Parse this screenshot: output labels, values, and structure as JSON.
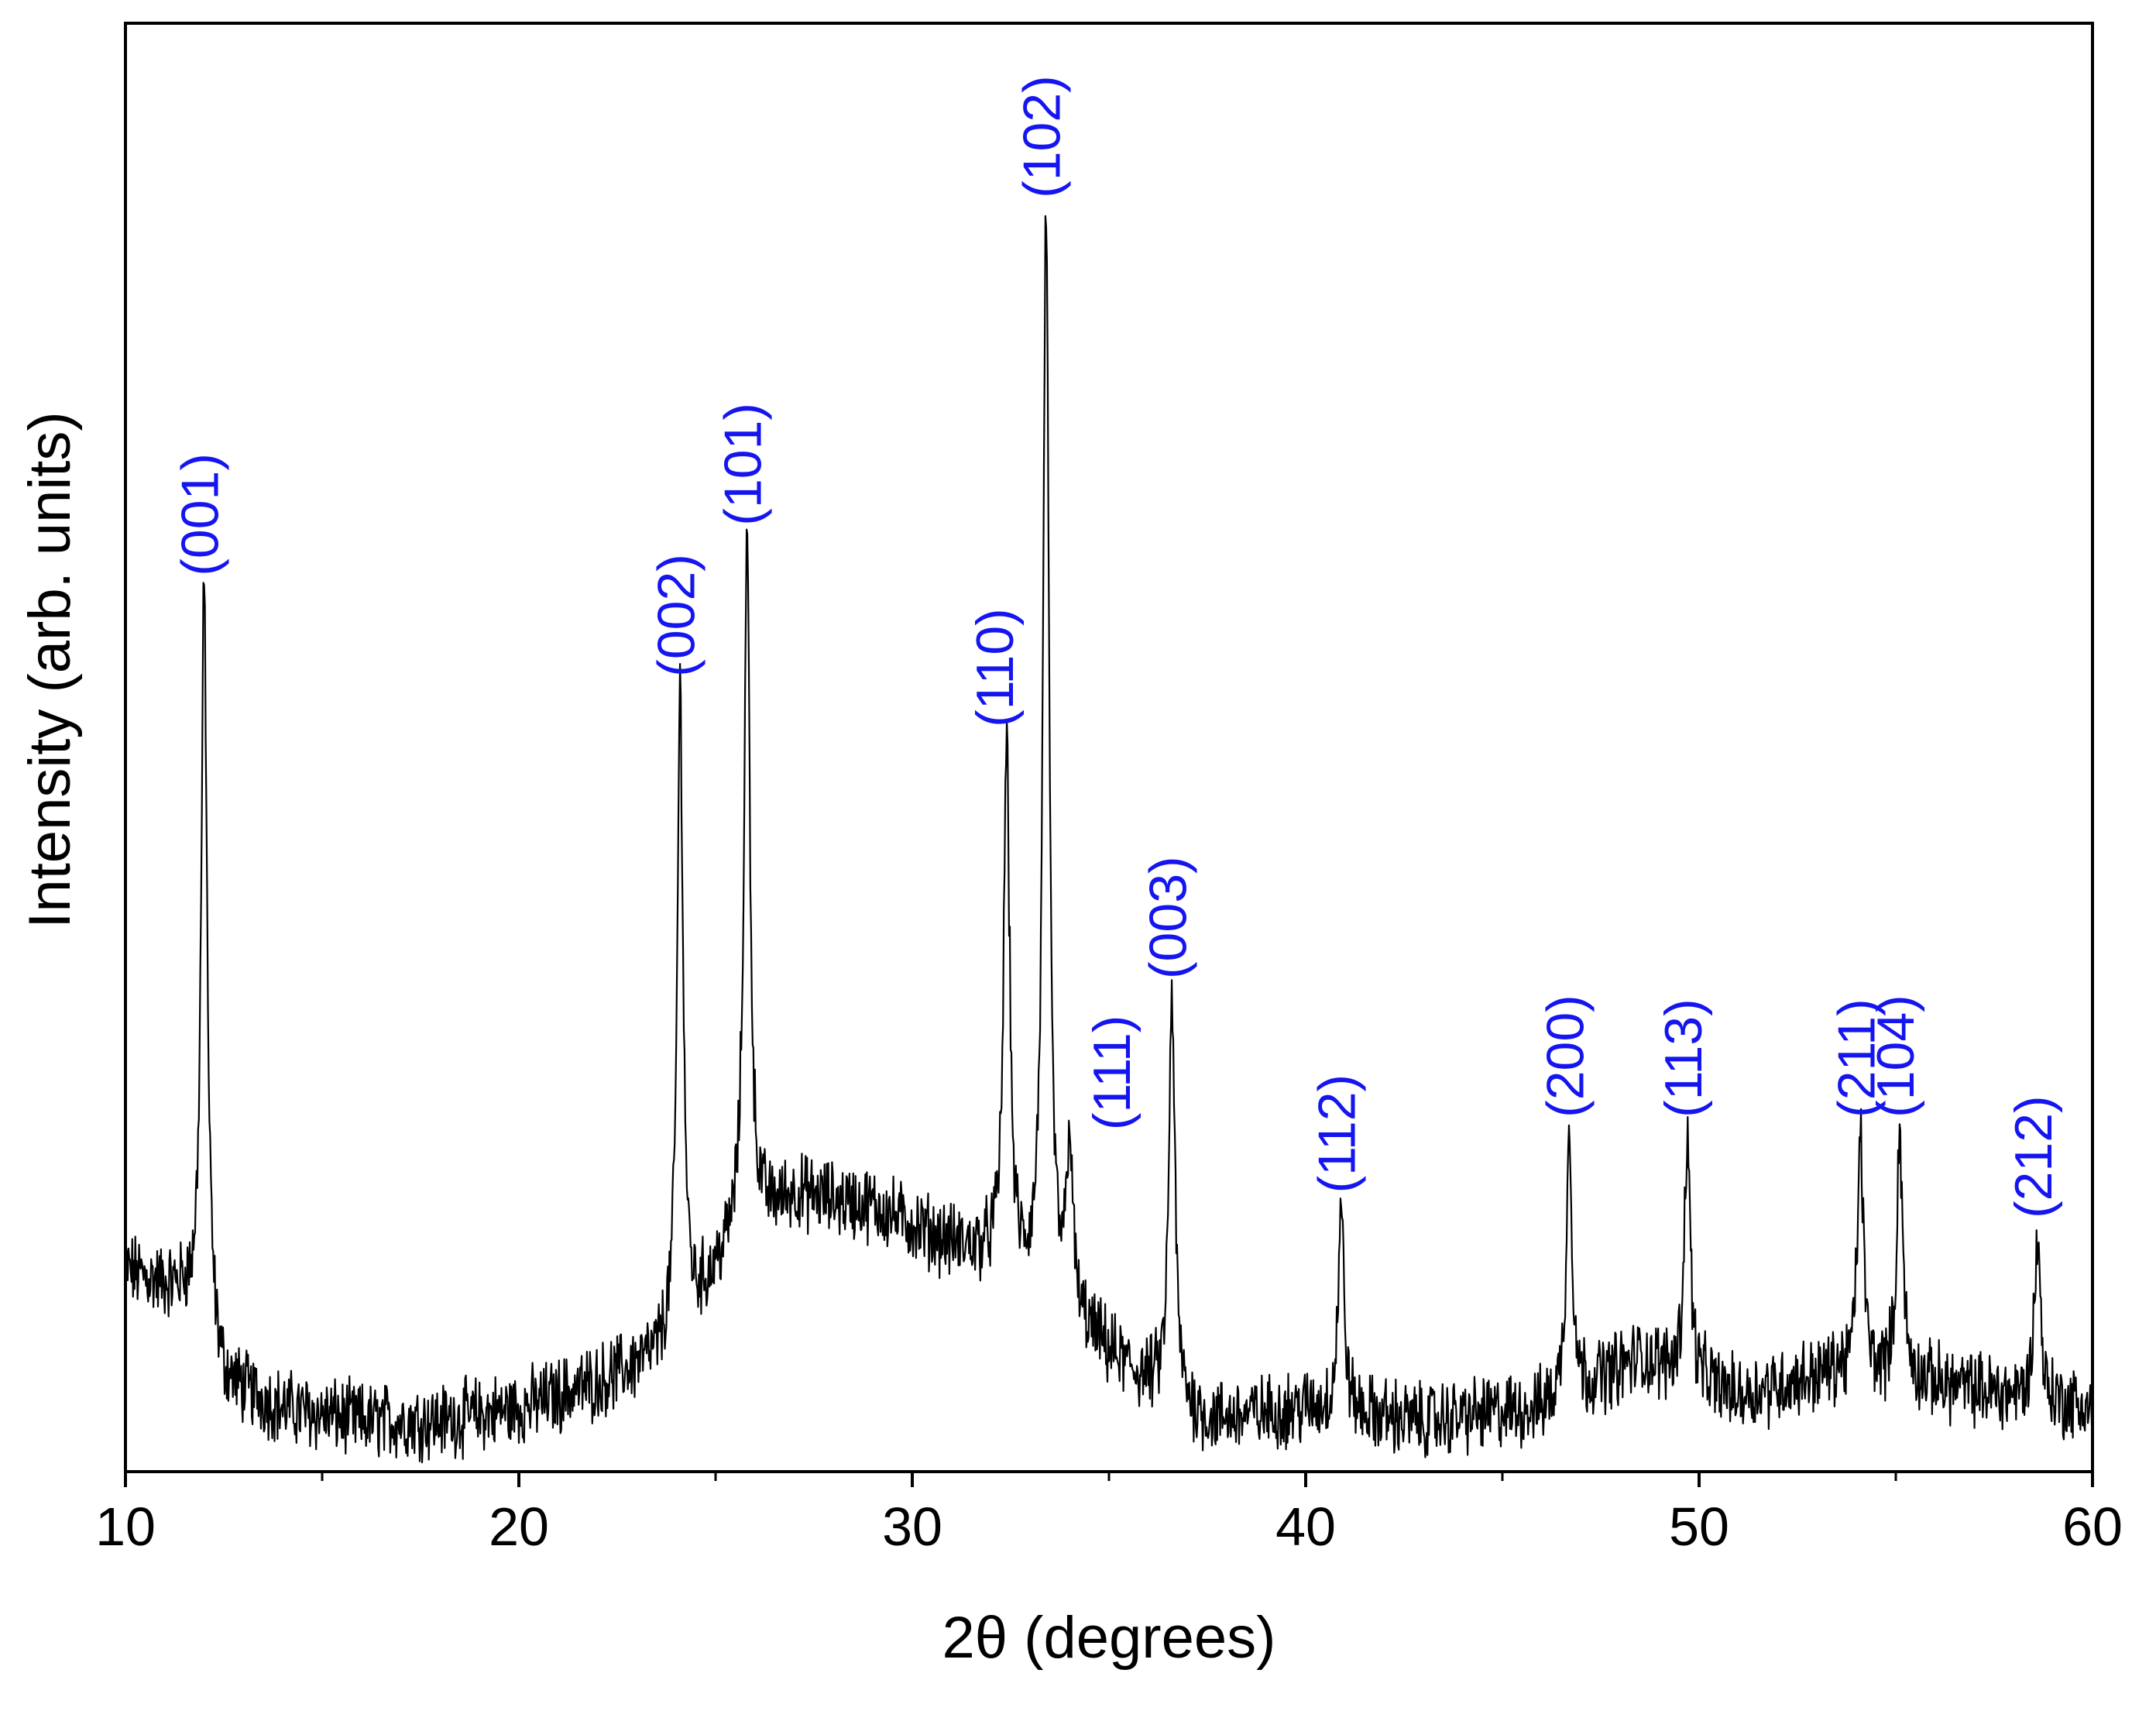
{
  "chart_data": {
    "type": "line",
    "title": "",
    "xlabel": "2θ (degrees)",
    "ylabel": "Intensity (arb. units)",
    "xlim": [
      10,
      60
    ],
    "ylim": [
      0,
      1.15
    ],
    "y_ticks_shown": false,
    "x_ticks": [
      10,
      20,
      30,
      40,
      50,
      60
    ],
    "x_minor_ticks": [
      15,
      25,
      35,
      45,
      55
    ],
    "grid": false,
    "legend": "none",
    "line_color": "#000000",
    "label_color": "#1515f0",
    "background_anchors": [
      [
        10.0,
        0.16
      ],
      [
        11.5,
        0.14
      ],
      [
        12.5,
        0.07
      ],
      [
        14.0,
        0.05
      ],
      [
        16.0,
        0.04
      ],
      [
        18.0,
        0.04
      ],
      [
        20.0,
        0.05
      ],
      [
        22.0,
        0.07
      ],
      [
        23.5,
        0.09
      ],
      [
        24.5,
        0.13
      ],
      [
        25.6,
        0.19
      ],
      [
        27.0,
        0.22
      ],
      [
        29.0,
        0.21
      ],
      [
        31.0,
        0.18
      ],
      [
        32.0,
        0.17
      ],
      [
        34.0,
        0.12
      ],
      [
        35.5,
        0.08
      ],
      [
        37.5,
        0.04
      ],
      [
        40.0,
        0.05
      ],
      [
        43.0,
        0.04
      ],
      [
        46.0,
        0.05
      ],
      [
        48.5,
        0.09
      ],
      [
        51.0,
        0.06
      ],
      [
        53.5,
        0.08
      ],
      [
        56.0,
        0.07
      ],
      [
        58.0,
        0.06
      ],
      [
        60.0,
        0.05
      ]
    ],
    "series": [
      {
        "peaks": [
          {
            "hkl": "(001)",
            "two_theta": 12.0,
            "intensity": 0.7
          },
          {
            "hkl": "(002)",
            "two_theta": 24.1,
            "intensity": 0.62
          },
          {
            "hkl": "(101)",
            "two_theta": 25.8,
            "intensity": 0.74
          },
          {
            "hkl": "(110)",
            "two_theta": 32.4,
            "intensity": 0.58
          },
          {
            "hkl": "(102)",
            "two_theta": 33.4,
            "intensity": 1.0
          },
          {
            "hkl": "(111)",
            "two_theta": 34.0,
            "intensity": 0.26
          },
          {
            "hkl": "(003)",
            "two_theta": 36.6,
            "intensity": 0.38
          },
          {
            "hkl": "(112)",
            "two_theta": 40.9,
            "intensity": 0.21
          },
          {
            "hkl": "(200)",
            "two_theta": 46.7,
            "intensity": 0.27
          },
          {
            "hkl": "(113)",
            "two_theta": 49.7,
            "intensity": 0.27
          },
          {
            "hkl": "(211)",
            "two_theta": 54.1,
            "intensity": 0.27
          },
          {
            "hkl": "(104)",
            "two_theta": 55.1,
            "intensity": 0.27
          },
          {
            "hkl": "(212)",
            "two_theta": 58.6,
            "intensity": 0.19
          }
        ]
      }
    ]
  }
}
